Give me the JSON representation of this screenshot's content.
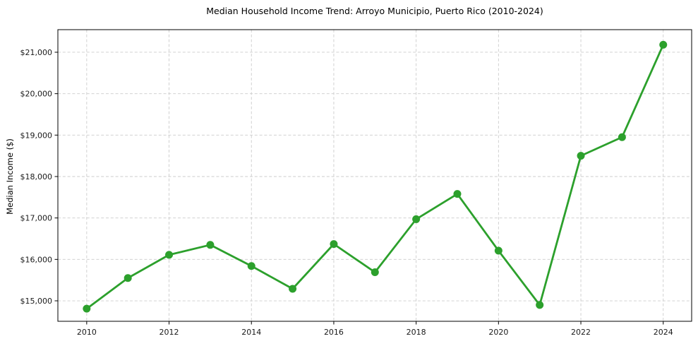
{
  "chart_data": {
    "type": "line",
    "title": "Median Household Income Trend: Arroyo Municipio, Puerto Rico (2010-2024)",
    "xlabel": "",
    "ylabel": "Median Income ($)",
    "series": [
      {
        "name": "Median household income",
        "x": [
          2010,
          2011,
          2012,
          2013,
          2014,
          2015,
          2016,
          2017,
          2018,
          2019,
          2020,
          2021,
          2022,
          2023,
          2024
        ],
        "values": [
          14810,
          15550,
          16110,
          16350,
          15840,
          15290,
          16370,
          15690,
          16970,
          17580,
          16210,
          14900,
          18500,
          18950,
          21180
        ],
        "color": "#2ca02c",
        "marker": "circle"
      }
    ],
    "xlim": [
      2009.3,
      2024.69
    ],
    "ylim": [
      14506,
      21545
    ],
    "x_ticks": [
      2010,
      2012,
      2014,
      2016,
      2018,
      2020,
      2022,
      2024
    ],
    "x_tick_labels": [
      "2010",
      "2012",
      "2014",
      "2016",
      "2018",
      "2020",
      "2022",
      "2024"
    ],
    "y_ticks": [
      15000,
      16000,
      17000,
      18000,
      19000,
      20000,
      21000
    ],
    "y_tick_labels": [
      "$15,000",
      "$16,000",
      "$17,000",
      "$18,000",
      "$19,000",
      "$20,000",
      "$21,000"
    ],
    "grid": true,
    "grid_style": "dashed",
    "legend": "none",
    "colors": {
      "line": "#2ca02c",
      "marker": "#2ca02c",
      "grid": "#cccccc",
      "spine": "#000000",
      "tick_label": "#191919",
      "title": "#000000",
      "background": "#ffffff"
    }
  }
}
